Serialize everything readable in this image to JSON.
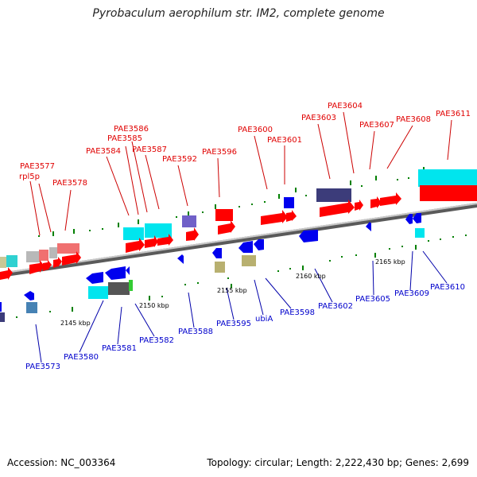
{
  "title": "Pyrobaculum aerophilum str. IM2, complete genome",
  "footer": {
    "accession": "Accession: NC_003364",
    "summary": "Topology: circular; Length: 2,222,430 bp; Genes: 2,699"
  },
  "scale_labels": [
    "2145 kbp",
    "2150 kbp",
    "2155 kbp",
    "2160 kbp",
    "2165 kbp"
  ],
  "upper_genes": [
    "PAE3577",
    "rpl5p",
    "PAE3578",
    "PAE3584",
    "PAE3585",
    "PAE3586",
    "PAE3587",
    "PAE3592",
    "PAE3596",
    "PAE3600",
    "PAE3601",
    "PAE3603",
    "PAE3604",
    "PAE3607",
    "PAE3608",
    "PAE3611"
  ],
  "lower_genes": [
    "PAE3573",
    "PAE3580",
    "PAE3581",
    "PAE3582",
    "PAE3588",
    "PAE3595",
    "ubiA",
    "PAE3598",
    "PAE3602",
    "PAE3605",
    "PAE3609",
    "PAE3610"
  ],
  "colors": {
    "forward_gene": "#ff0000",
    "reverse_gene": "#0000ee",
    "rna": "#00e5ee",
    "backbone": "#808080",
    "tick": "#008000",
    "upper_label": "#e00000",
    "lower_label": "#0000cc"
  }
}
